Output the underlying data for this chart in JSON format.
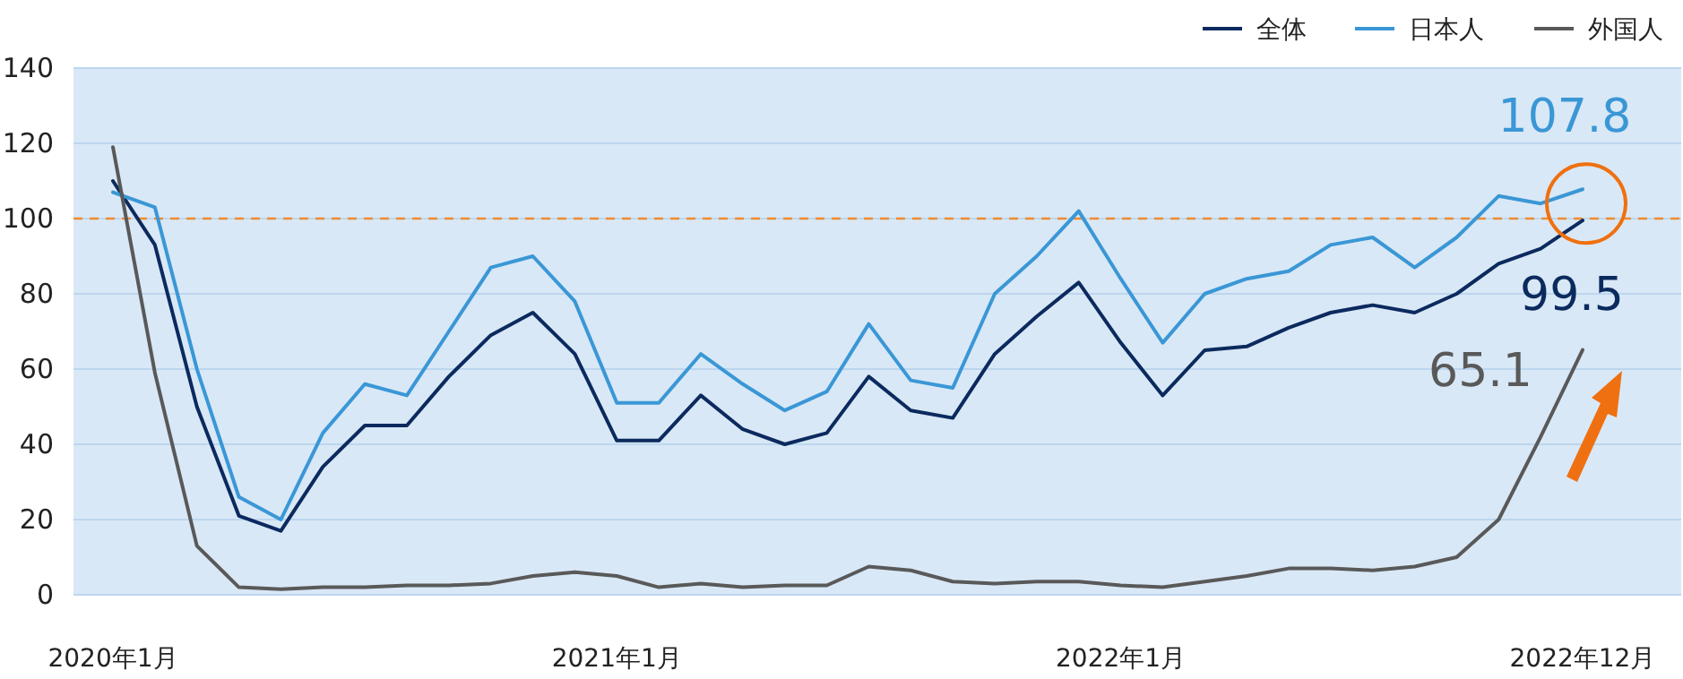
{
  "chart_data": {
    "type": "line",
    "categories": [
      "2020年1月",
      null,
      null,
      null,
      null,
      null,
      null,
      null,
      null,
      null,
      null,
      null,
      "2021年1月",
      null,
      null,
      null,
      null,
      null,
      null,
      null,
      null,
      null,
      null,
      null,
      "2022年1月",
      null,
      null,
      null,
      null,
      null,
      null,
      null,
      null,
      null,
      null,
      "2022年12月"
    ],
    "series": [
      {
        "name": "全体",
        "color": "#0b2a5e",
        "values": [
          110,
          93,
          50,
          21,
          17,
          34,
          45,
          45,
          58,
          69,
          75,
          64,
          41,
          41,
          53,
          44,
          40,
          43,
          58,
          49,
          47,
          64,
          74,
          83,
          67,
          53,
          65,
          66,
          71,
          75,
          77,
          75,
          80,
          88,
          92,
          99.5
        ],
        "value_labels": [
          null,
          null,
          null,
          null,
          null,
          null,
          null,
          null,
          null,
          null,
          null,
          null,
          null,
          null,
          null,
          null,
          null,
          null,
          null,
          null,
          null,
          null,
          null,
          null,
          null,
          null,
          null,
          null,
          null,
          null,
          null,
          null,
          null,
          null,
          null,
          "99.5"
        ]
      },
      {
        "name": "日本人",
        "color": "#3a97d6",
        "values": [
          107,
          103,
          60,
          26,
          20,
          43,
          56,
          53,
          70,
          87,
          90,
          78,
          51,
          51,
          64,
          56,
          49,
          54,
          72,
          57,
          55,
          80,
          90,
          102,
          84,
          67,
          80,
          84,
          86,
          93,
          95,
          87,
          95,
          106,
          104,
          107.8
        ],
        "value_labels": [
          null,
          null,
          null,
          null,
          null,
          null,
          null,
          null,
          null,
          null,
          null,
          null,
          null,
          null,
          null,
          null,
          null,
          null,
          null,
          null,
          null,
          null,
          null,
          null,
          null,
          null,
          null,
          null,
          null,
          null,
          null,
          null,
          null,
          null,
          null,
          "107.8"
        ]
      },
      {
        "name": "外国人",
        "color": "#595959",
        "values": [
          119,
          59,
          13,
          2,
          1.5,
          2,
          2,
          2.5,
          2.5,
          3,
          5,
          6,
          5,
          2,
          3,
          2,
          2.5,
          2.5,
          7.5,
          6.5,
          3.5,
          3,
          3.5,
          3.5,
          2.5,
          2,
          3.5,
          5,
          7,
          7,
          6.5,
          7.5,
          10,
          20,
          42,
          65.1
        ],
        "value_labels": [
          null,
          null,
          null,
          null,
          null,
          null,
          null,
          null,
          null,
          null,
          null,
          null,
          null,
          null,
          null,
          null,
          null,
          null,
          null,
          null,
          null,
          null,
          null,
          null,
          null,
          null,
          null,
          null,
          null,
          null,
          null,
          null,
          null,
          null,
          null,
          "65.1"
        ]
      }
    ],
    "ylim": [
      0,
      140
    ],
    "yticks": [
      0,
      20,
      40,
      60,
      80,
      100,
      120,
      140
    ],
    "grid": "y",
    "legend": "top right",
    "marker": "none",
    "line_style": "solid",
    "ref_lines": [
      {
        "axis": "y",
        "value": 100,
        "label": null,
        "color": "#f08a30",
        "line_style": "dashed"
      }
    ]
  }
}
